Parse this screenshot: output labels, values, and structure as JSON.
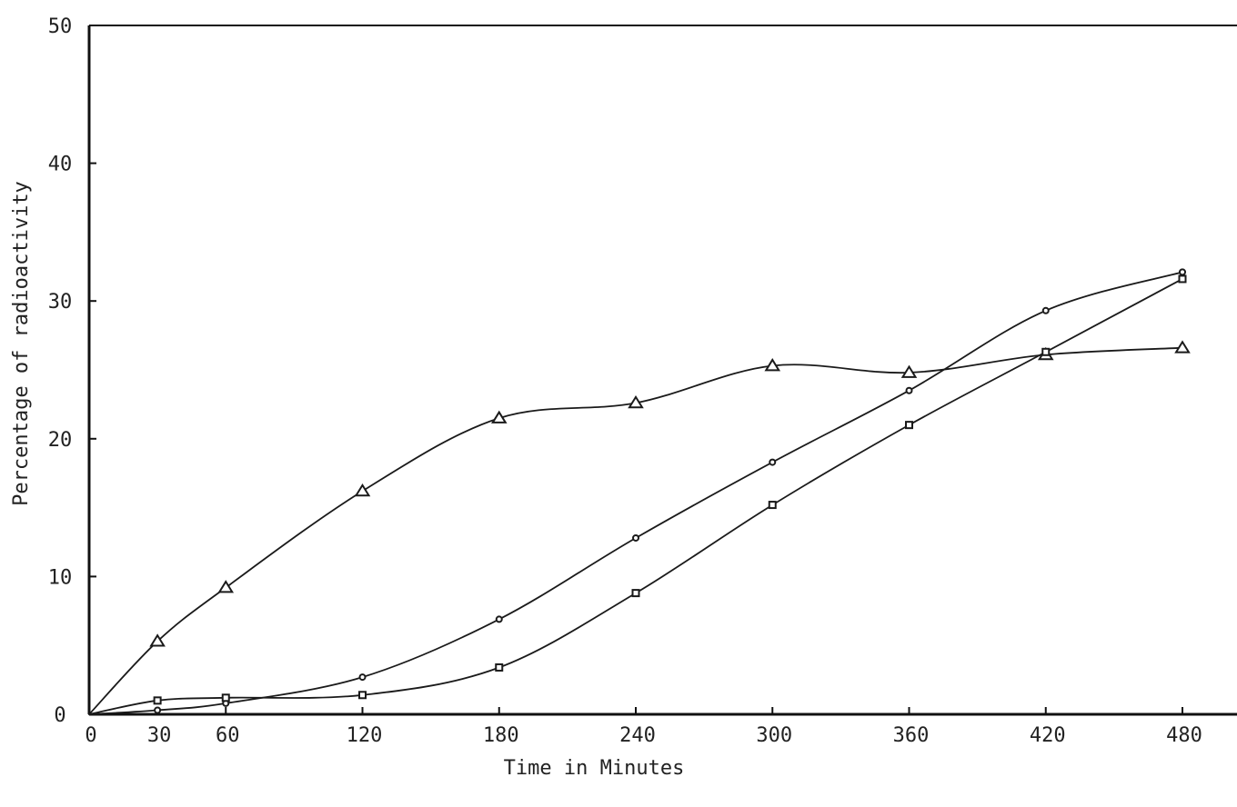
{
  "chart_data": {
    "type": "line",
    "title": "",
    "xlabel": "Time in Minutes",
    "ylabel": "Percentage of radioactivity",
    "xlim": [
      0,
      480
    ],
    "ylim": [
      0,
      50
    ],
    "x_ticks": [
      0,
      30,
      60,
      120,
      180,
      240,
      300,
      360,
      420,
      480
    ],
    "x_tick_labels": [
      "0",
      "30",
      "60",
      "120",
      "180",
      "240",
      "300",
      "360",
      "420",
      "480"
    ],
    "y_ticks": [
      0,
      10,
      20,
      30,
      40,
      50
    ],
    "y_tick_labels": [
      "0",
      "10",
      "20",
      "30",
      "40",
      "50"
    ],
    "grid": false,
    "legend": "none",
    "series": [
      {
        "marker": "triangle",
        "points": [
          [
            0,
            0
          ],
          [
            30,
            5.3
          ],
          [
            60,
            9.2
          ],
          [
            120,
            16.2
          ],
          [
            180,
            21.5
          ],
          [
            240,
            22.6
          ],
          [
            300,
            25.3
          ],
          [
            360,
            24.8
          ],
          [
            420,
            26.1
          ],
          [
            480,
            26.6
          ]
        ]
      },
      {
        "marker": "circle",
        "points": [
          [
            0,
            0
          ],
          [
            30,
            0.3
          ],
          [
            60,
            0.8
          ],
          [
            120,
            2.7
          ],
          [
            180,
            6.9
          ],
          [
            240,
            12.8
          ],
          [
            300,
            18.3
          ],
          [
            360,
            23.5
          ],
          [
            420,
            29.3
          ],
          [
            480,
            32.1
          ]
        ]
      },
      {
        "marker": "square",
        "points": [
          [
            0,
            0
          ],
          [
            30,
            1.0
          ],
          [
            60,
            1.2
          ],
          [
            120,
            1.4
          ],
          [
            180,
            3.4
          ],
          [
            240,
            8.8
          ],
          [
            300,
            15.2
          ],
          [
            360,
            21.0
          ],
          [
            420,
            26.3
          ],
          [
            480,
            31.6
          ]
        ]
      }
    ]
  }
}
